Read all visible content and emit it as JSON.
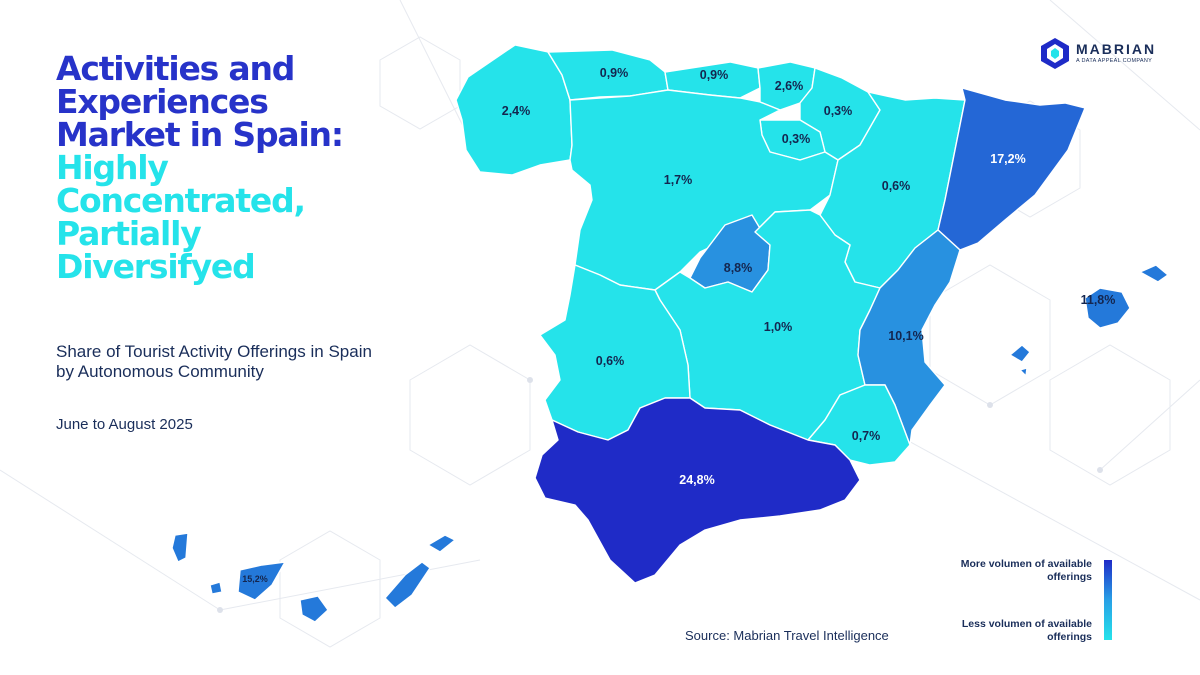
{
  "title": {
    "line_dark_1": "Activities and",
    "line_dark_2": "Experiences",
    "line_dark_3": "Market in Spain:",
    "line_light_1": "Highly",
    "line_light_2": "Concentrated,",
    "line_light_3": "Partially",
    "line_light_4": "Diversifyed"
  },
  "subtitle": "Share of Tourist Activity Offerings in Spain by Autonomous Community",
  "period": "June to August 2025",
  "source": "Source: Mabrian Travel Intelligence",
  "logo": {
    "name": "MABRIAN",
    "tagline": "A DATA APPEAL COMPANY",
    "icon": "hexagon-logo-icon"
  },
  "legend": {
    "more": "More volumen of available offerings",
    "less": "Less volumen of available offerings",
    "colors": [
      "#1f2bc7",
      "#28a0e6",
      "#25e3ea"
    ]
  },
  "colors": {
    "title_dark": "#2733c9",
    "title_light": "#25e3ea",
    "text": "#1a2e5a"
  },
  "regions": [
    {
      "id": "galicia",
      "value": "2,4%",
      "color": "#25e3ea"
    },
    {
      "id": "asturias",
      "value": "0,9%",
      "color": "#25e3ea"
    },
    {
      "id": "cantabria",
      "value": "0,9%",
      "color": "#25e3ea"
    },
    {
      "id": "pais-vasco",
      "value": "2,6%",
      "color": "#25e3ea"
    },
    {
      "id": "navarra",
      "value": "0,3%",
      "color": "#25e3ea"
    },
    {
      "id": "la-rioja",
      "value": "0,3%",
      "color": "#25e3ea"
    },
    {
      "id": "castilla-y-leon",
      "value": "1,7%",
      "color": "#25e3ea"
    },
    {
      "id": "aragon",
      "value": "0,6%",
      "color": "#25e3ea"
    },
    {
      "id": "cataluna",
      "value": "17,2%",
      "color": "#2467d6"
    },
    {
      "id": "madrid",
      "value": "8,8%",
      "color": "#2891e0"
    },
    {
      "id": "castilla-la-mancha",
      "value": "1,0%",
      "color": "#25e3ea"
    },
    {
      "id": "extremadura",
      "value": "0,6%",
      "color": "#25e3ea"
    },
    {
      "id": "comunidad-valenciana",
      "value": "10,1%",
      "color": "#2891e0"
    },
    {
      "id": "murcia",
      "value": "0,7%",
      "color": "#25e3ea"
    },
    {
      "id": "andalucia",
      "value": "24,8%",
      "color": "#1f2bc7"
    },
    {
      "id": "baleares",
      "value": "11,8%",
      "color": "#2479da"
    },
    {
      "id": "canarias",
      "value": "15,2%",
      "color": "#2479da"
    }
  ]
}
